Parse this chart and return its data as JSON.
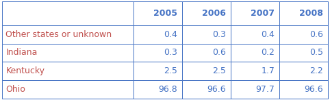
{
  "columns": [
    "2005",
    "2006",
    "2007",
    "2008"
  ],
  "rows": [
    [
      "Other states or unknown",
      "0.4",
      "0.3",
      "0.4",
      "0.6"
    ],
    [
      "Indiana",
      "0.3",
      "0.6",
      "0.2",
      "0.5"
    ],
    [
      "Kentucky",
      "2.5",
      "2.5",
      "1.7",
      "2.2"
    ],
    [
      "Ohio",
      "96.8",
      "96.6",
      "97.7",
      "96.6"
    ]
  ],
  "header_text_color": "#4472c4",
  "data_text_color": "#4472c4",
  "label_text_color": "#c0504d",
  "border_color": "#4472c4",
  "bg_color": "#ffffff",
  "figsize": [
    4.82,
    1.46
  ],
  "dpi": 100,
  "data_fontsize": 9,
  "header_fontsize": 9
}
